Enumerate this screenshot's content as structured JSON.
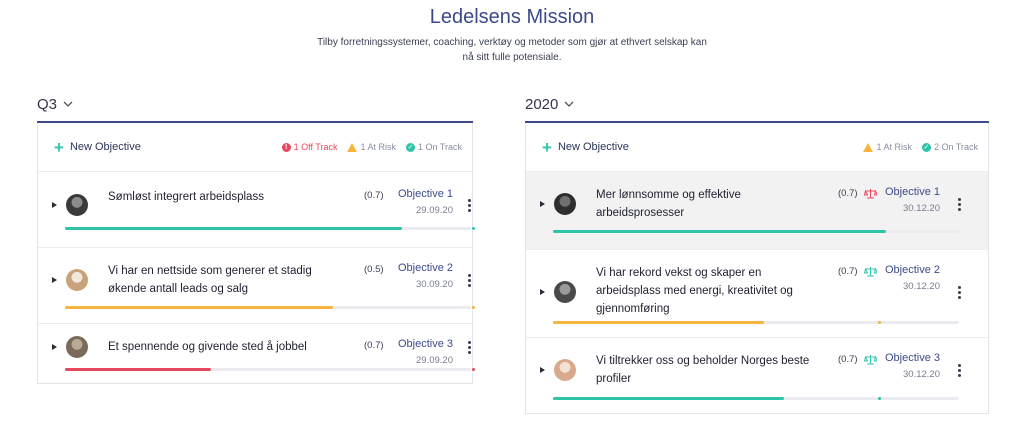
{
  "header": {
    "title": "Ledelsens Mission",
    "subtitle": "Tilby forretningssystemer, coaching, verktøy og metoder som gjør at ethvert selskap kan nå sitt fulle potensiale."
  },
  "columns": [
    {
      "name": "Q3",
      "new_objective_label": "New Objective",
      "stats": {
        "off_track": "1 Off Track",
        "at_risk": "1 At Risk",
        "on_track": "1 On Track"
      },
      "rows": [
        {
          "text": "Sømløst integrert arbeidsplass",
          "score": "(0.7)",
          "objective": "Objective 1",
          "date": "29.09.20",
          "progress": 0.83,
          "status": "on-track",
          "color": "#2ec4a9"
        },
        {
          "text": "Vi har en nettside som generer et stadig økende antall leads og salg",
          "score": "(0.5)",
          "objective": "Objective 2",
          "date": "30.09.20",
          "progress": 0.66,
          "status": "at-risk",
          "color": "#f5b53f"
        },
        {
          "text": "Et spennende og givende sted å jobbel",
          "score": "(0.7)",
          "objective": "Objective 3",
          "date": "29.09.20",
          "progress": 0.36,
          "status": "off-track",
          "color": "#e8485e"
        }
      ]
    },
    {
      "name": "2020",
      "new_objective_label": "New Objective",
      "stats": {
        "at_risk": "1 At Risk",
        "on_track": "2 On Track"
      },
      "rows": [
        {
          "text": "Mer lønnsomme og effektive arbeidsprosesser",
          "score": "(0.7)",
          "objective": "Objective 1",
          "date": "30.12.20",
          "progress": 0.82,
          "status": "off-track",
          "color": "#2ec4a9",
          "scale_color": "#e8485e"
        },
        {
          "text": "Vi har rekord vekst og skaper en arbeidsplass med energi, kreativitet og gjennomføring",
          "score": "(0.7)",
          "objective": "Objective 2",
          "date": "30.12.20",
          "progress": 0.52,
          "status": "on-track",
          "color": "#f5b53f",
          "scale_color": "#2ec4a9"
        },
        {
          "text": "Vi tiltrekker oss og beholder Norges beste profiler",
          "score": "(0.7)",
          "objective": "Objective 3",
          "date": "30.12.20",
          "progress": 0.57,
          "status": "on-track",
          "color": "#2ec4a9",
          "scale_color": "#2ec4a9"
        }
      ]
    }
  ],
  "icons": {
    "chevron": "chevron-down-icon",
    "plus": "plus-icon",
    "off_track": "exclamation-circle-icon",
    "at_risk": "warning-triangle-icon",
    "on_track": "check-circle-icon",
    "kebab": "more-vertical-icon",
    "expand": "caret-right-icon",
    "scale": "balance-scale-icon"
  }
}
